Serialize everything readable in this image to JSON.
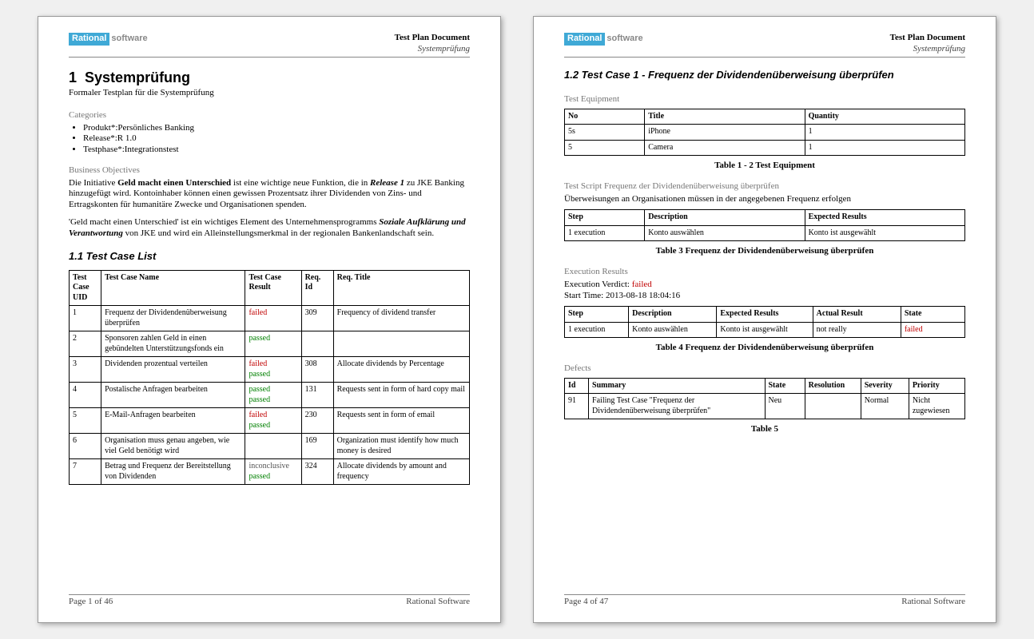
{
  "colors": {
    "failed": "#c00000",
    "passed": "#008000",
    "logo_bg": "#3fa9d6",
    "logo_text": "#888888",
    "rule": "#888888"
  },
  "header": {
    "logo_left": "Rational",
    "logo_right": "software",
    "doc_title": "Test Plan Document",
    "doc_sub": "Systemprüfung"
  },
  "page1": {
    "h1_num": "1",
    "h1_text": "Systemprüfung",
    "subtitle": "Formaler Testplan für die Systemprüfung",
    "categories_label": "Categories",
    "categories": [
      "Produkt*:Persönliches Banking",
      "Release*:R 1.0",
      "Testphase*:Integrationstest"
    ],
    "bo_label": "Business Objectives",
    "bo_p1_pre": "Die Initiative ",
    "bo_p1_bold": "Geld macht einen Unterschied",
    "bo_p1_mid": " ist eine wichtige neue Funktion, die in ",
    "bo_p1_ital": "Release 1",
    "bo_p1_post": " zu JKE Banking hinzugefügt wird. Kontoinhaber können einen gewissen Prozentsatz ihrer Dividenden von Zins- und Ertragskonten für humanitäre Zwecke und Organisationen spenden.",
    "bo_p2_pre": "'Geld macht einen Unterschied' ist ein wichtiges Element des Unternehmensprogramms ",
    "bo_p2_ital": "Soziale Aufklärung und Verantwortung",
    "bo_p2_post": " von JKE und wird ein Alleinstellungsmerkmal in der regionalen Bankenlandschaft sein.",
    "h2": "1.1  Test Case List",
    "tcl_cols": [
      "Test Case UID",
      "Test Case Name",
      "Test Case Result",
      "Req. Id",
      "Req. Title"
    ],
    "tcl_rows": [
      {
        "uid": "1",
        "name": "Frequenz der Dividendenüberweisung überprüfen",
        "results": [
          {
            "t": "failed",
            "c": "failed"
          }
        ],
        "req": "309",
        "title": "Frequency of dividend transfer"
      },
      {
        "uid": "2",
        "name": "Sponsoren zahlen Geld in einen gebündelten Unterstützungsfonds ein",
        "results": [
          {
            "t": "passed",
            "c": "passed"
          }
        ],
        "req": "",
        "title": ""
      },
      {
        "uid": "3",
        "name": "Dividenden prozentual verteilen",
        "results": [
          {
            "t": "failed",
            "c": "failed"
          },
          {
            "t": "passed",
            "c": "passed"
          }
        ],
        "req": "308",
        "title": "Allocate dividends by Percentage"
      },
      {
        "uid": "4",
        "name": "Postalische Anfragen bearbeiten",
        "results": [
          {
            "t": "passed",
            "c": "passed"
          },
          {
            "t": "passed",
            "c": "passed"
          }
        ],
        "req": "131",
        "title": "Requests sent in form of hard copy mail"
      },
      {
        "uid": "5",
        "name": "E-Mail-Anfragen bearbeiten",
        "results": [
          {
            "t": "failed",
            "c": "failed"
          },
          {
            "t": "passed",
            "c": "passed"
          }
        ],
        "req": "230",
        "title": "Requests sent in form of email"
      },
      {
        "uid": "6",
        "name": "Organisation muss genau angeben, wie viel Geld benötigt wird",
        "results": [],
        "req": "169",
        "title": "Organization must identify how much money is desired"
      },
      {
        "uid": "7",
        "name": "Betrag und Frequenz der Bereitstellung von Dividenden",
        "results": [
          {
            "t": "inconclusive",
            "c": "inconclusive"
          },
          {
            "t": "passed",
            "c": "passed"
          }
        ],
        "req": "324",
        "title": "Allocate dividends by amount and frequency"
      }
    ],
    "footer_left": "Page 1 of  46",
    "footer_right": "Rational Software"
  },
  "page2": {
    "h2": "1.2  Test Case 1 - Frequenz der Dividendenüberweisung überprüfen",
    "equip_label": "Test Equipment",
    "equip_cols": [
      "No",
      "Title",
      "Quantity"
    ],
    "equip_rows": [
      {
        "no": "5s",
        "title": "iPhone",
        "qty": "1"
      },
      {
        "no": "5",
        "title": "Camera",
        "qty": "1"
      }
    ],
    "equip_caption": "Table 1 - 2 Test Equipment",
    "ts_label": "Test Script Frequenz der Dividendenüberweisung überprüfen",
    "ts_desc": "Überweisungen an Organisationen müssen in der angegebenen Frequenz erfolgen",
    "ts_cols": [
      "Step",
      "Description",
      "Expected Results"
    ],
    "ts_rows": [
      {
        "step": "1 execution",
        "desc": "Konto auswählen",
        "exp": "Konto ist ausgewählt"
      }
    ],
    "ts_caption": "Table 3 Frequenz der Dividendenüberweisung überprüfen",
    "exec_label": "Execution Results",
    "exec_verdict_pre": "Execution Verdict: ",
    "exec_verdict": "failed",
    "exec_start": "Start Time: 2013-08-18 18:04:16",
    "exec_cols": [
      "Step",
      "Description",
      "Expected Results",
      "Actual Result",
      "State"
    ],
    "exec_rows": [
      {
        "step": "1 execution",
        "desc": "Konto auswählen",
        "exp": "Konto ist ausgewählt",
        "act": "not really",
        "state": "failed"
      }
    ],
    "exec_caption": "Table 4 Frequenz der Dividendenüberweisung überprüfen",
    "def_label": "Defects",
    "def_cols": [
      "Id",
      "Summary",
      "State",
      "Resolution",
      "Severity",
      "Priority"
    ],
    "def_rows": [
      {
        "id": "91",
        "summary": "Failing Test Case \"Frequenz der Dividendenüberweisung überprüfen\"",
        "state": "Neu",
        "res": "",
        "sev": "Normal",
        "pri": "Nicht zugewiesen"
      }
    ],
    "def_caption": "Table 5",
    "footer_left": "Page 4 of  47",
    "footer_right": "Rational Software"
  }
}
